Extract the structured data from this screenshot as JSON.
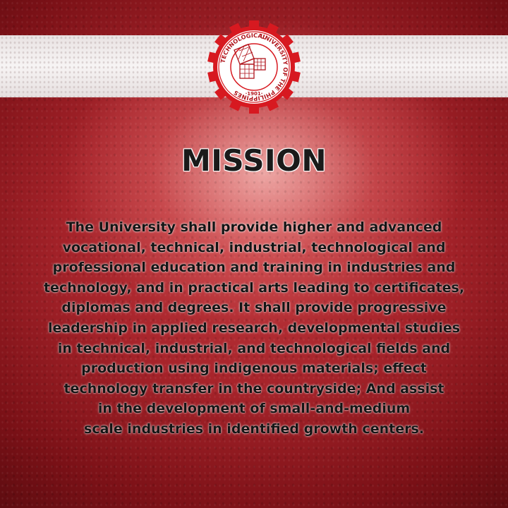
{
  "logo": {
    "ring_text_top": "UNIVERSITY OF THE PHILIPPINES",
    "ring_text_left": "TECHNOLOGICAL",
    "year": "·1901·",
    "gear_color": "#d71920"
  },
  "title": "MISSION",
  "mission_lines": [
    "The University shall provide higher and advanced",
    "vocational, technical, industrial, technological and",
    "professional education and training in industries and",
    "technology, and in practical arts leading to certificates,",
    "diplomas and degrees. It shall provide progressive",
    "leadership in applied research, developmental studies",
    "in technical, industrial, and technological fields and",
    "production using indigenous materials; effect",
    "technology transfer in the countryside; And assist",
    "in the development of small-and-medium",
    "scale industries in identified growth centers."
  ],
  "colors": {
    "background_red": "#a6232a",
    "band_white": "#f3efef",
    "text": "#141414"
  }
}
